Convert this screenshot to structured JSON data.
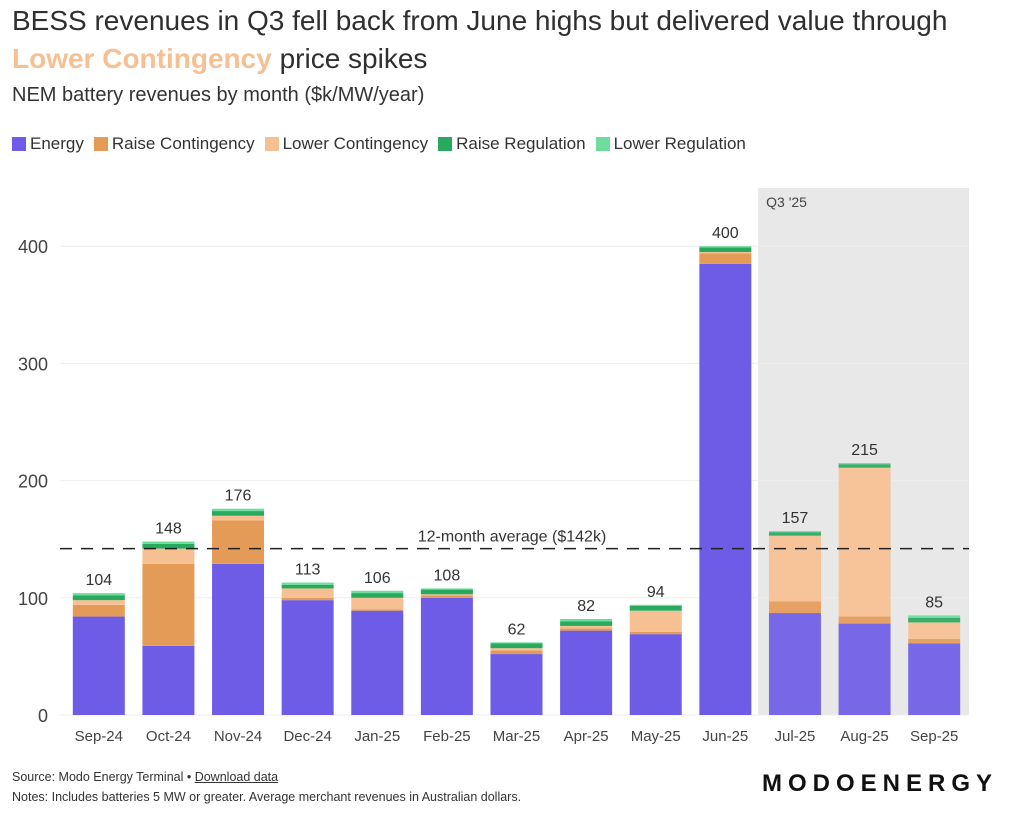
{
  "header": {
    "title_part1": "BESS revenues in Q3 fell back from June highs but delivered value through ",
    "title_highlight": "Lower Contingency",
    "title_part2": " price spikes",
    "subtitle": "NEM battery revenues by month ($k/MW/year)"
  },
  "footer": {
    "source_prefix": "Source: Modo Energy Terminal • ",
    "download_link": "Download data",
    "notes": "Notes: Includes batteries 5 MW or greater. Average merchant revenues in Australian dollars.",
    "logo": "MODOENERGY"
  },
  "chart_data": {
    "type": "bar",
    "stacked": true,
    "title": "BESS revenues in Q3 fell back from June highs but delivered value through Lower Contingency price spikes",
    "subtitle": "NEM battery revenues by month ($k/MW/year)",
    "xlabel": "",
    "ylabel": "",
    "ylim": [
      0,
      440
    ],
    "yticks": [
      0,
      100,
      200,
      300,
      400
    ],
    "grid": true,
    "legend_position": "top-left",
    "categories": [
      "Sep-24",
      "Oct-24",
      "Nov-24",
      "Dec-24",
      "Jan-25",
      "Feb-25",
      "Mar-25",
      "Apr-25",
      "May-25",
      "Jun-25",
      "Jul-25",
      "Aug-25",
      "Sep-25"
    ],
    "totals": [
      104,
      148,
      176,
      113,
      106,
      108,
      62,
      82,
      94,
      400,
      157,
      215,
      85
    ],
    "series": [
      {
        "name": "Energy",
        "color": "#6e5ce6",
        "values": [
          84,
          59,
          129,
          98,
          89,
          100,
          52,
          72,
          69,
          385,
          87,
          78,
          61
        ]
      },
      {
        "name": "Raise Contingency",
        "color": "#e59b58",
        "values": [
          10,
          70,
          37,
          2,
          1,
          2,
          3,
          2,
          2,
          9,
          10,
          6,
          4
        ]
      },
      {
        "name": "Lower Contingency",
        "color": "#f7c093",
        "values": [
          4,
          13,
          4,
          8,
          10,
          1,
          2,
          2,
          18,
          1,
          56,
          127,
          14
        ]
      },
      {
        "name": "Raise Regulation",
        "color": "#27a95e",
        "values": [
          4,
          4,
          4,
          3,
          4,
          4,
          4,
          4,
          4,
          4,
          3,
          3,
          4
        ]
      },
      {
        "name": "Lower Regulation",
        "color": "#6ddc9c",
        "values": [
          2,
          2,
          2,
          2,
          2,
          1,
          1,
          2,
          1,
          1,
          1,
          1,
          2
        ]
      }
    ],
    "annotations": [
      {
        "type": "hline",
        "value": 142,
        "label": "12-month average ($142k)",
        "style": "dashed"
      },
      {
        "type": "shaded_region",
        "label": "Q3 '25",
        "from": "Jul-25",
        "to": "Sep-25"
      }
    ]
  }
}
